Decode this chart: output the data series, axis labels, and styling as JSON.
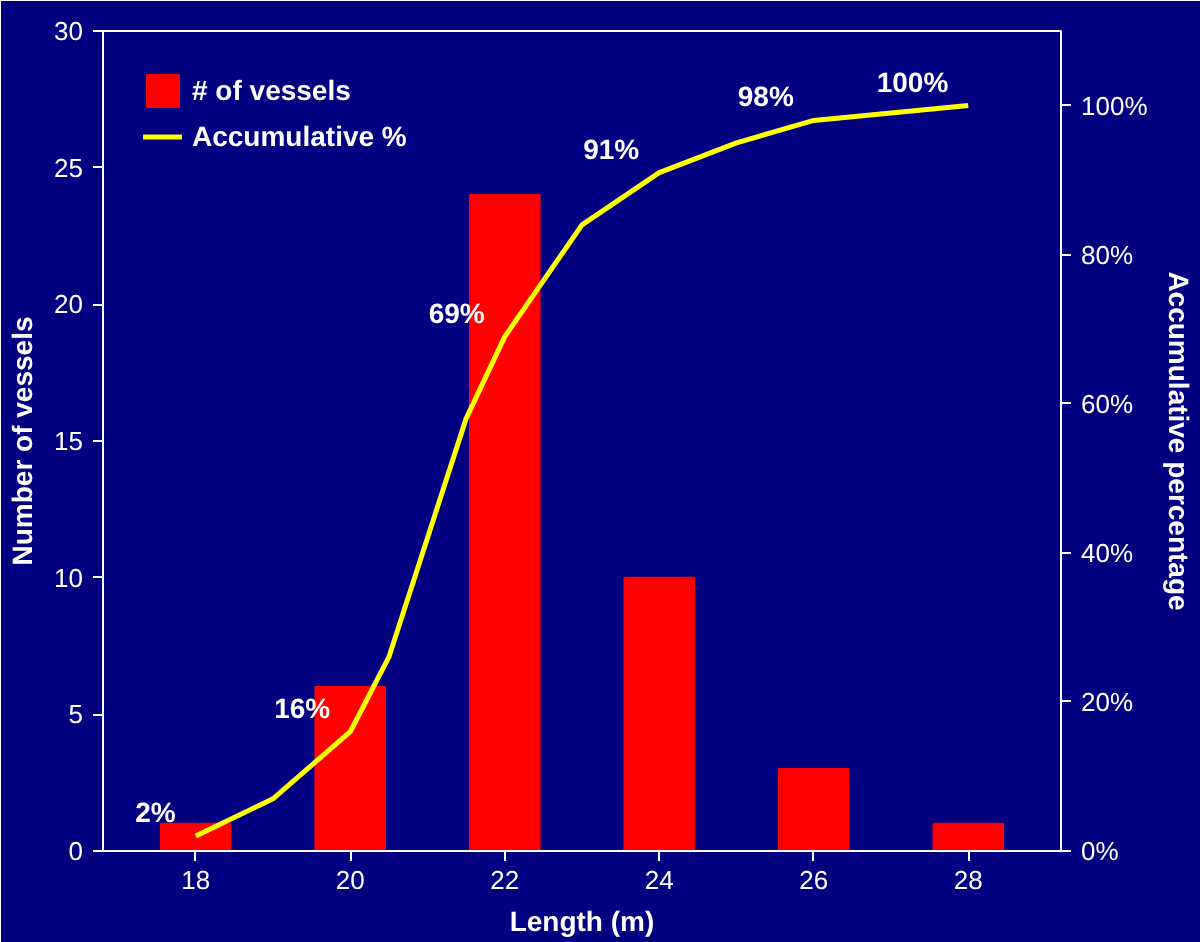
{
  "chart_data": {
    "type": "bar",
    "xlabel": "Length (m)",
    "ylabel": "Number of vessels",
    "y2label": "Accumulative percentage",
    "x": [
      18,
      20,
      22,
      24,
      26,
      28
    ],
    "xlim": [
      16.8,
      29.2
    ],
    "xticks": [
      18,
      20,
      22,
      24,
      26,
      28
    ],
    "ylim": [
      0,
      30
    ],
    "yticks": [
      0,
      5,
      10,
      15,
      20,
      25,
      30
    ],
    "y2lim": [
      0,
      110
    ],
    "y2ticks": [
      {
        "value": 0,
        "label": "0%"
      },
      {
        "value": 20,
        "label": "20%"
      },
      {
        "value": 40,
        "label": "40%"
      },
      {
        "value": 60,
        "label": "60%"
      },
      {
        "value": 80,
        "label": "80%"
      },
      {
        "value": 100,
        "label": "100%"
      }
    ],
    "series": [
      {
        "name": "# of vessels",
        "color": "#ff0000",
        "values": [
          1,
          6,
          24,
          10,
          3,
          1
        ]
      },
      {
        "name": "Accumulative %",
        "type": "line",
        "axis": "y2",
        "color": "#ffff00",
        "x": [
          18,
          19,
          20,
          20.5,
          21,
          21.5,
          22,
          23,
          24,
          25,
          26,
          27,
          28
        ],
        "values": [
          2,
          7,
          16,
          26,
          42,
          58,
          69,
          84,
          91,
          95,
          98,
          99,
          100
        ],
        "value_labels": [
          "2%",
          null,
          "16%",
          null,
          null,
          null,
          "69%",
          null,
          "91%",
          null,
          "98%",
          null,
          "100%"
        ]
      }
    ],
    "grid": false,
    "legend": "top left",
    "marker": "none",
    "line_style": "solid"
  }
}
